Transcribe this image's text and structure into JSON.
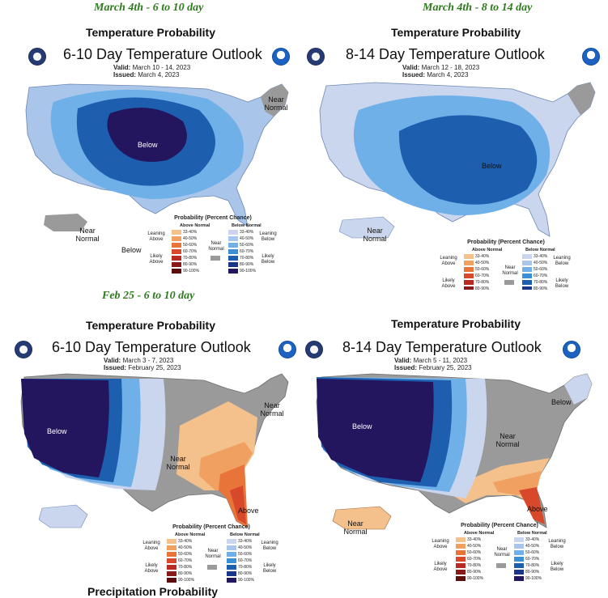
{
  "captions": {
    "top_left": "March 4th - 6 to 10 day",
    "top_right": "March 4th -  8 to 14 day",
    "middle_left": "Feb 25 - 6 to 10 day"
  },
  "panels": [
    {
      "header": "Temperature Probability",
      "title": "6-10 Day Temperature Outlook",
      "valid_label": "Valid:",
      "valid_value": "March 10 - 14, 2023",
      "issued_label": "Issued:",
      "issued_value": "March 4, 2023",
      "map_labels": [
        "Below",
        "Near Normal",
        "Near Normal",
        "Below"
      ],
      "legend": {
        "title": "Probability (Percent Chance)",
        "above_head": "Above Normal",
        "below_head": "Below Normal",
        "near_head": "Near Normal",
        "leaning_above": "Leaning Above",
        "likely_above": "Likely Above",
        "leaning_below": "Leaning Below",
        "likely_below": "Likely Below",
        "above_ranges": [
          "33-40%",
          "40-50%",
          "50-60%",
          "60-70%",
          "70-80%",
          "80-90%",
          "90-100%"
        ],
        "below_ranges": [
          "33-40%",
          "40-50%",
          "50-60%",
          "60-70%",
          "70-80%",
          "80-90%",
          "90-100%"
        ]
      }
    },
    {
      "header": "Temperature Probability",
      "title": "8-14 Day Temperature Outlook",
      "valid_label": "Valid:",
      "valid_value": "March 12 - 18, 2023",
      "issued_label": "Issued:",
      "issued_value": "March 4, 2023",
      "map_labels": [
        "Below",
        "Near Normal"
      ],
      "legend": {
        "title": "Probability (Percent Chance)",
        "above_head": "Above Normal",
        "below_head": "Below Normal",
        "near_head": "Near Normal",
        "leaning_above": "Leaning Above",
        "likely_above": "Likely Above",
        "leaning_below": "Leaning Below",
        "likely_below": "Likely Below",
        "above_ranges": [
          "33-40%",
          "40-50%",
          "50-60%",
          "60-70%",
          "70-80%",
          "80-90%",
          "90-100%"
        ],
        "below_ranges": [
          "33-40%",
          "40-50%",
          "50-60%",
          "60-70%",
          "70-80%",
          "80-90%",
          "90-100%"
        ]
      }
    },
    {
      "header": "Temperature Probability",
      "title": "6-10 Day Temperature Outlook",
      "valid_label": "Valid:",
      "valid_value": "March 3 - 7, 2023",
      "issued_label": "Issued:",
      "issued_value": "February 25, 2023",
      "map_labels": [
        "Below",
        "Near Normal",
        "Near Normal",
        "Above"
      ],
      "legend": {
        "title": "Probability (Percent Chance)",
        "above_head": "Above Normal",
        "below_head": "Below Normal",
        "near_head": "Near Normal",
        "leaning_above": "Leaning Above",
        "likely_above": "Likely Above",
        "leaning_below": "Leaning Below",
        "likely_below": "Likely Below",
        "above_ranges": [
          "33-40%",
          "40-50%",
          "50-60%",
          "60-70%",
          "70-80%",
          "80-90%",
          "90-100%"
        ],
        "below_ranges": [
          "33-40%",
          "40-50%",
          "50-60%",
          "60-70%",
          "70-80%",
          "80-90%",
          "90-100%"
        ]
      }
    },
    {
      "header": "Temperature Probability",
      "title": "8-14 Day Temperature Outlook",
      "valid_label": "Valid:",
      "valid_value": "March 5 - 11, 2023",
      "issued_label": "Issued:",
      "issued_value": "February 25, 2023",
      "map_labels": [
        "Below",
        "Below",
        "Near Normal",
        "Near Normal",
        "Above"
      ],
      "legend": {
        "title": "Probability (Percent Chance)",
        "above_head": "Above Normal",
        "below_head": "Below Normal",
        "near_head": "Near Normal",
        "leaning_above": "Leaning Above",
        "likely_above": "Likely Above",
        "leaning_below": "Leaning Below",
        "likely_below": "Likely Below",
        "above_ranges": [
          "33-40%",
          "40-50%",
          "50-60%",
          "60-70%",
          "70-80%",
          "80-90%",
          "90-100%"
        ],
        "below_ranges": [
          "33-40%",
          "40-50%",
          "50-60%",
          "60-70%",
          "70-80%",
          "80-90%",
          "90-100%"
        ]
      }
    }
  ],
  "cutoff_text": "Precipitation Probability",
  "colors": {
    "caption_green": "#2f7a1f",
    "near_normal": "#9a9a9a",
    "above": [
      "#f4c08c",
      "#f0a060",
      "#e8743a",
      "#d8482a",
      "#b82a22",
      "#8a1a1a",
      "#5a0e0e"
    ],
    "below": [
      "#c9d6ee",
      "#a9c6ea",
      "#6fb0e8",
      "#3a8fd6",
      "#1d5fae",
      "#1b3688",
      "#23165e"
    ]
  }
}
